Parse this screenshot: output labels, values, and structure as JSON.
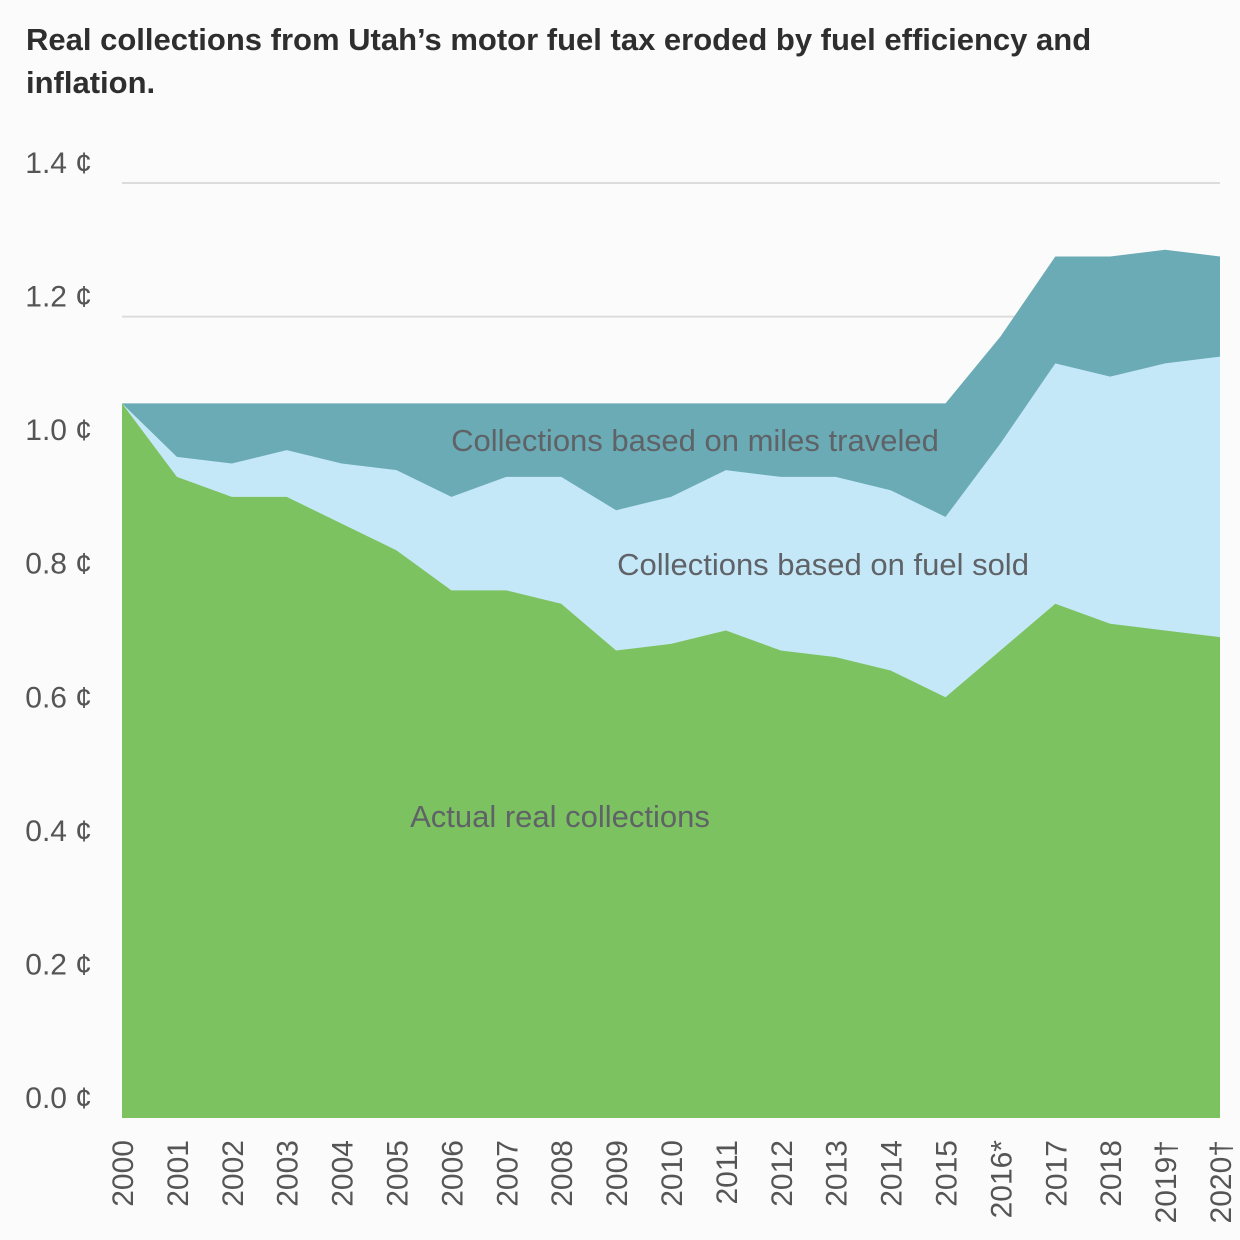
{
  "title": "Real collections from Utah’s motor fuel tax eroded by fuel efficiency and inflation.",
  "chart_data": {
    "type": "area",
    "stacked": true,
    "categories": [
      "2000",
      "2001",
      "2002",
      "2003",
      "2004",
      "2005",
      "2006",
      "2007",
      "2008",
      "2009",
      "2010",
      "2011",
      "2012",
      "2013",
      "2014",
      "2015",
      "2016*",
      "2017",
      "2018",
      "2019†",
      "2020†"
    ],
    "series": [
      {
        "name": "Actual real collections",
        "color": "#7dc260",
        "values": [
          1.07,
          0.96,
          0.93,
          0.93,
          0.89,
          0.85,
          0.79,
          0.79,
          0.77,
          0.7,
          0.71,
          0.73,
          0.7,
          0.69,
          0.67,
          0.63,
          0.7,
          0.77,
          0.74,
          0.73,
          0.72
        ]
      },
      {
        "name": "Collections based on fuel sold",
        "color": "#c5e8f8",
        "values": [
          1.07,
          0.99,
          0.98,
          1.0,
          0.98,
          0.97,
          0.93,
          0.96,
          0.96,
          0.91,
          0.93,
          0.97,
          0.96,
          0.96,
          0.94,
          0.9,
          1.01,
          1.13,
          1.11,
          1.13,
          1.14
        ]
      },
      {
        "name": "Collections based on miles traveled",
        "color": "#6aabb5",
        "values": [
          1.07,
          1.07,
          1.07,
          1.07,
          1.07,
          1.07,
          1.07,
          1.07,
          1.07,
          1.07,
          1.07,
          1.07,
          1.07,
          1.07,
          1.07,
          1.07,
          1.17,
          1.29,
          1.29,
          1.3,
          1.29
        ]
      }
    ],
    "y_ticks": [
      "0.0 ¢",
      "0.2 ¢",
      "0.4 ¢",
      "0.6 ¢",
      "0.8 ¢",
      "1.0 ¢",
      "1.2 ¢",
      "1.4 ¢"
    ],
    "y_tick_values": [
      0,
      0.2,
      0.4,
      0.6,
      0.8,
      1.0,
      1.2,
      1.4
    ],
    "ylim": [
      0,
      1.4
    ],
    "xlabel": "",
    "ylabel": "",
    "grid": true,
    "grid_color": "#dcdcdc",
    "legend": "none (series labeled inside areas)"
  }
}
